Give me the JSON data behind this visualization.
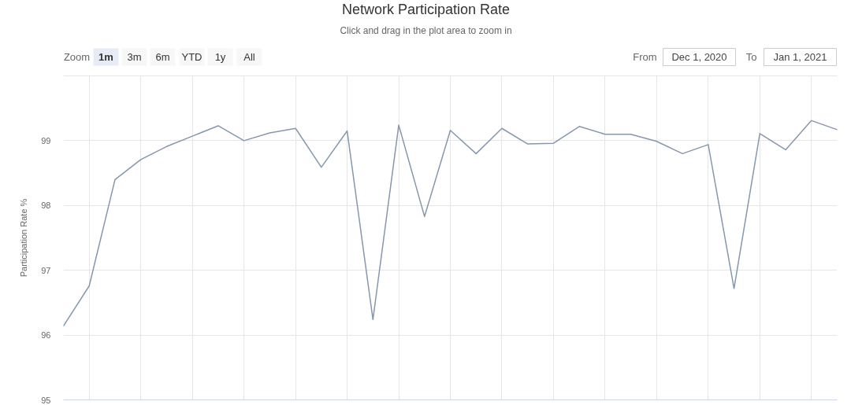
{
  "chart_data": {
    "type": "line",
    "title": "Network Participation Rate",
    "subtitle": "Click and drag in the plot area to zoom in",
    "annotations": [
      "Zoom",
      "1m",
      "3m",
      "6m",
      "YTD",
      "1y",
      "All",
      "From",
      "Dec 1, 2020",
      "To",
      "Jan 1, 2021"
    ],
    "ylabel": "Participation Rate %",
    "categories": [
      null,
      null,
      null,
      null,
      null,
      null,
      null,
      null,
      null,
      null,
      null,
      null,
      null,
      null,
      null,
      null,
      null,
      null,
      null,
      null,
      null,
      null,
      null,
      null,
      null,
      null,
      null,
      null,
      null,
      null,
      null
    ],
    "series": [
      {
        "color": "#8797ad",
        "values": [
          96.14,
          96.76,
          98.4,
          98.71,
          98.91,
          99.07,
          99.23,
          99.0,
          99.12,
          99.19,
          98.59,
          99.15,
          96.24,
          99.24,
          97.83,
          99.16,
          98.8,
          99.19,
          98.95,
          98.96,
          99.22,
          99.1,
          99.1,
          98.99,
          98.8,
          98.94,
          96.72,
          99.11,
          98.86,
          99.31,
          99.17
        ]
      }
    ],
    "ylim": [
      95,
      100
    ],
    "yticks": [
      95,
      96,
      97,
      98,
      99,
      {
        "value": 100,
        "label": null
      }
    ],
    "grid": true,
    "tick_labels": "y"
  }
}
